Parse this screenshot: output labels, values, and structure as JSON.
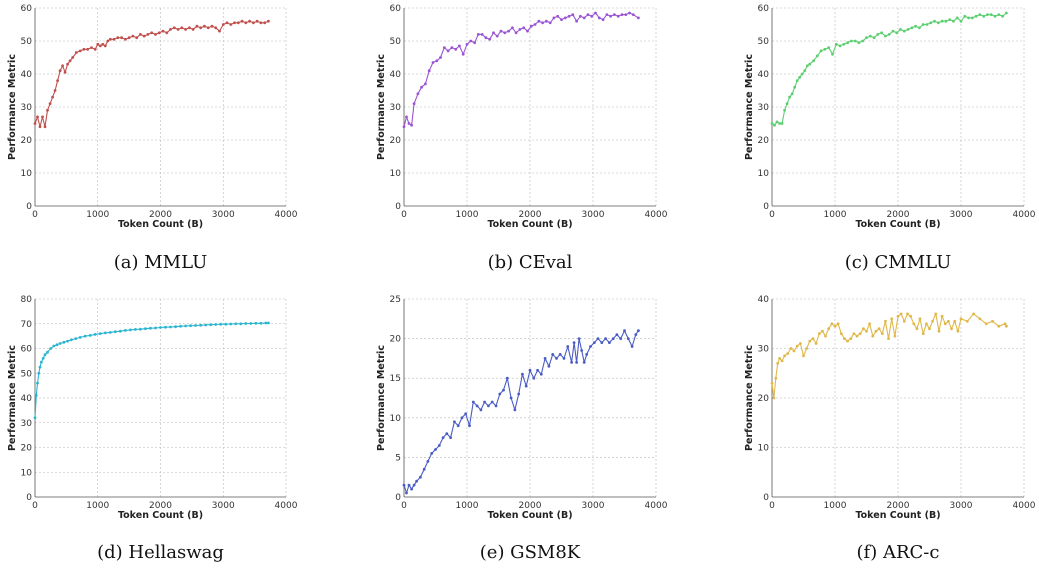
{
  "chart_data": [
    {
      "type": "line",
      "caption": "(a) MMLU",
      "xlabel": "Token Count (B)",
      "ylabel": "Performance Metric",
      "xlim": [
        0,
        4000
      ],
      "ylim": [
        0,
        60
      ],
      "xticks": [
        0,
        1000,
        2000,
        3000,
        4000
      ],
      "yticks": [
        0,
        10,
        20,
        30,
        40,
        50,
        60
      ],
      "grid": true,
      "color": "#c0504d",
      "series": [
        {
          "x": [
            0,
            40,
            80,
            120,
            160,
            200,
            240,
            280,
            320,
            360,
            400,
            440,
            480,
            520,
            560,
            600,
            660,
            720,
            780,
            840,
            900,
            960,
            1000,
            1040,
            1080,
            1120,
            1160,
            1200,
            1260,
            1320,
            1380,
            1440,
            1500,
            1560,
            1620,
            1680,
            1740,
            1800,
            1860,
            1920,
            1980,
            2040,
            2100,
            2160,
            2220,
            2280,
            2340,
            2400,
            2460,
            2520,
            2580,
            2640,
            2700,
            2760,
            2820,
            2880,
            2940,
            3000,
            3060,
            3120,
            3180,
            3240,
            3300,
            3360,
            3420,
            3480,
            3540,
            3600,
            3660,
            3720
          ],
          "y": [
            25,
            27,
            24,
            27,
            24,
            29,
            31,
            33,
            35,
            38,
            41,
            42.5,
            40.5,
            43,
            44,
            45,
            46.5,
            47,
            47.5,
            47.5,
            48,
            47.5,
            49,
            48.5,
            49,
            48.5,
            50,
            50.5,
            50.5,
            51,
            51,
            50.5,
            51,
            51.5,
            51,
            52,
            51.5,
            52,
            52.5,
            52,
            52.5,
            53,
            52.5,
            53.5,
            54,
            53.5,
            54,
            53.5,
            54,
            53.5,
            54.5,
            54,
            54.5,
            54,
            54.5,
            54,
            53,
            55,
            55.5,
            55,
            55.5,
            55.5,
            56,
            55.5,
            56,
            55.5,
            56,
            55.5,
            55.5,
            56
          ]
        }
      ]
    },
    {
      "type": "line",
      "caption": "(b) CEval",
      "xlabel": "Token Count (B)",
      "ylabel": "Performance Metric",
      "xlim": [
        0,
        4000
      ],
      "ylim": [
        0,
        60
      ],
      "xticks": [
        0,
        1000,
        2000,
        3000,
        4000
      ],
      "yticks": [
        0,
        10,
        20,
        30,
        40,
        50,
        60
      ],
      "grid": true,
      "color": "#9b55d4",
      "series": [
        {
          "x": [
            0,
            40,
            80,
            120,
            160,
            220,
            280,
            340,
            400,
            460,
            520,
            580,
            640,
            700,
            760,
            820,
            880,
            940,
            1000,
            1060,
            1120,
            1180,
            1240,
            1300,
            1360,
            1420,
            1480,
            1540,
            1600,
            1660,
            1720,
            1780,
            1840,
            1900,
            1960,
            2020,
            2080,
            2140,
            2200,
            2260,
            2320,
            2380,
            2440,
            2500,
            2560,
            2620,
            2680,
            2740,
            2800,
            2860,
            2920,
            2980,
            3040,
            3100,
            3160,
            3220,
            3280,
            3340,
            3400,
            3460,
            3520,
            3580,
            3640,
            3720
          ],
          "y": [
            24,
            27,
            25,
            24.5,
            31,
            34,
            36,
            37,
            41,
            43.5,
            44,
            45,
            48,
            47,
            48,
            47.5,
            48.5,
            46,
            49,
            50,
            49.5,
            52,
            52,
            51,
            50.5,
            52.5,
            51.5,
            53,
            52.5,
            53,
            54,
            52.5,
            53.5,
            54,
            53,
            54.5,
            55,
            56,
            55.5,
            56,
            55.5,
            57,
            57.5,
            56.5,
            57,
            57.5,
            58,
            56,
            57.5,
            57,
            58,
            57.5,
            58.5,
            57,
            56.5,
            58,
            57.5,
            58,
            57.5,
            58,
            58,
            58.5,
            58,
            57
          ]
        }
      ]
    },
    {
      "type": "line",
      "caption": "(c) CMMLU",
      "xlabel": "Token Count (B)",
      "ylabel": "Performance Metric",
      "xlim": [
        0,
        4000
      ],
      "ylim": [
        0,
        60
      ],
      "xticks": [
        0,
        1000,
        2000,
        3000,
        4000
      ],
      "yticks": [
        0,
        10,
        20,
        30,
        40,
        50,
        60
      ],
      "grid": true,
      "color": "#5ccf70",
      "series": [
        {
          "x": [
            0,
            40,
            80,
            120,
            160,
            200,
            240,
            280,
            320,
            360,
            400,
            440,
            480,
            520,
            560,
            600,
            660,
            720,
            780,
            840,
            900,
            960,
            1020,
            1080,
            1140,
            1200,
            1260,
            1320,
            1380,
            1440,
            1500,
            1560,
            1620,
            1680,
            1740,
            1800,
            1860,
            1920,
            1980,
            2040,
            2100,
            2160,
            2220,
            2280,
            2340,
            2400,
            2460,
            2520,
            2580,
            2640,
            2700,
            2760,
            2820,
            2880,
            2940,
            3000,
            3060,
            3120,
            3180,
            3240,
            3300,
            3360,
            3420,
            3480,
            3540,
            3600,
            3660,
            3720
          ],
          "y": [
            25,
            24.5,
            25.5,
            25,
            25,
            29,
            31,
            33,
            34,
            36,
            38,
            39,
            40,
            41,
            42.5,
            43,
            44,
            45.5,
            47,
            47.5,
            48,
            46,
            49,
            48.5,
            49,
            49.5,
            50,
            50,
            49.5,
            50,
            51,
            51.5,
            51,
            52,
            52.5,
            51.5,
            52,
            53,
            52.5,
            53.5,
            53,
            53.5,
            54,
            54.5,
            54,
            55,
            55,
            55.5,
            56,
            55.5,
            56,
            56,
            56.5,
            56,
            57,
            56,
            57.5,
            57,
            57,
            57.5,
            58,
            57.5,
            58,
            58,
            57.5,
            58,
            57.5,
            58.5
          ]
        }
      ]
    },
    {
      "type": "line",
      "caption": "(d) Hellaswag",
      "xlabel": "Token Count (B)",
      "ylabel": "Performance Metric",
      "xlim": [
        0,
        4000
      ],
      "ylim": [
        0,
        80
      ],
      "xticks": [
        0,
        1000,
        2000,
        3000,
        4000
      ],
      "yticks": [
        0,
        10,
        20,
        30,
        40,
        50,
        60,
        70,
        80
      ],
      "grid": true,
      "color": "#2bb5d0",
      "series": [
        {
          "x": [
            0,
            20,
            40,
            60,
            80,
            100,
            130,
            160,
            200,
            250,
            300,
            350,
            400,
            460,
            520,
            580,
            650,
            720,
            800,
            880,
            960,
            1040,
            1120,
            1200,
            1280,
            1360,
            1440,
            1520,
            1600,
            1680,
            1760,
            1840,
            1920,
            2000,
            2080,
            2160,
            2240,
            2320,
            2400,
            2480,
            2560,
            2640,
            2720,
            2800,
            2880,
            2960,
            3040,
            3120,
            3200,
            3280,
            3360,
            3440,
            3520,
            3600,
            3680,
            3720
          ],
          "y": [
            32,
            41,
            46,
            50,
            52.5,
            54.5,
            56,
            57.5,
            58.5,
            60,
            61,
            61.5,
            62,
            62.5,
            63,
            63.5,
            64,
            64.5,
            65,
            65.3,
            65.7,
            66,
            66.3,
            66.5,
            66.8,
            67,
            67.3,
            67.5,
            67.7,
            67.8,
            68,
            68.2,
            68.3,
            68.5,
            68.6,
            68.7,
            68.8,
            69,
            69.1,
            69.2,
            69.3,
            69.4,
            69.5,
            69.6,
            69.7,
            69.8,
            69.8,
            69.9,
            70,
            70,
            70.1,
            70.1,
            70.2,
            70.2,
            70.3,
            70.3
          ]
        }
      ]
    },
    {
      "type": "line",
      "caption": "(e) GSM8K",
      "xlabel": "Token Count (B)",
      "ylabel": "Performance Metric",
      "xlim": [
        0,
        4000
      ],
      "ylim": [
        0,
        25
      ],
      "xticks": [
        0,
        1000,
        2000,
        3000,
        4000
      ],
      "yticks": [
        0,
        5,
        10,
        15,
        20,
        25
      ],
      "grid": true,
      "color": "#4a5cc5",
      "series": [
        {
          "x": [
            0,
            40,
            80,
            120,
            160,
            200,
            260,
            320,
            380,
            440,
            500,
            560,
            620,
            680,
            740,
            800,
            860,
            920,
            980,
            1040,
            1100,
            1160,
            1220,
            1280,
            1340,
            1400,
            1460,
            1520,
            1580,
            1640,
            1700,
            1760,
            1820,
            1880,
            1940,
            2000,
            2060,
            2120,
            2180,
            2240,
            2300,
            2360,
            2420,
            2480,
            2540,
            2600,
            2660,
            2700,
            2740,
            2780,
            2820,
            2860,
            2900,
            2960,
            3020,
            3080,
            3140,
            3200,
            3260,
            3320,
            3380,
            3440,
            3500,
            3560,
            3620,
            3680,
            3720
          ],
          "y": [
            1.5,
            0.5,
            1.5,
            1,
            1.5,
            2,
            2.5,
            3.5,
            4.5,
            5.5,
            6,
            6.5,
            7.5,
            8,
            7.5,
            9.5,
            9,
            10,
            10.5,
            9,
            12,
            11.5,
            11,
            12,
            11.5,
            12,
            11.5,
            13,
            13.5,
            15,
            12.5,
            11,
            13,
            15.5,
            14,
            16,
            15,
            16,
            15.5,
            17.5,
            16.5,
            18,
            17.5,
            18,
            17.5,
            19,
            17,
            19.5,
            17,
            20,
            18.5,
            17,
            18,
            19,
            19.5,
            20,
            19.5,
            20,
            19.5,
            20,
            20.5,
            20,
            21,
            20,
            19,
            20.5,
            21
          ]
        }
      ]
    },
    {
      "type": "line",
      "caption": "(f) ARC-c",
      "xlabel": "Token Count (B)",
      "ylabel": "Performance Metric",
      "xlim": [
        0,
        4000
      ],
      "ylim": [
        0,
        40
      ],
      "xticks": [
        0,
        1000,
        2000,
        3000,
        4000
      ],
      "yticks": [
        0,
        10,
        20,
        30,
        40
      ],
      "grid": true,
      "color": "#e0b84a",
      "series": [
        {
          "x": [
            0,
            30,
            60,
            90,
            120,
            160,
            200,
            250,
            300,
            350,
            400,
            450,
            500,
            550,
            600,
            650,
            700,
            750,
            800,
            850,
            900,
            950,
            1000,
            1050,
            1100,
            1150,
            1200,
            1250,
            1300,
            1350,
            1400,
            1450,
            1500,
            1550,
            1600,
            1650,
            1700,
            1750,
            1800,
            1850,
            1900,
            1950,
            2000,
            2050,
            2100,
            2150,
            2200,
            2250,
            2300,
            2350,
            2400,
            2450,
            2500,
            2550,
            2600,
            2650,
            2700,
            2750,
            2800,
            2850,
            2900,
            2950,
            3000,
            3100,
            3200,
            3300,
            3400,
            3500,
            3600,
            3700,
            3720
          ],
          "y": [
            23,
            20,
            24,
            27,
            28,
            27.5,
            28.5,
            29,
            30,
            29.5,
            30.5,
            31,
            28.5,
            30,
            31.5,
            32,
            31,
            33,
            33.5,
            32.5,
            34,
            35,
            34.5,
            35,
            33,
            32,
            31.5,
            32,
            33,
            32.5,
            33,
            34,
            33.5,
            35,
            32.5,
            33.5,
            34,
            33,
            35.5,
            32,
            36,
            32.5,
            36.5,
            37,
            35.5,
            37,
            36.5,
            35,
            34,
            36,
            33,
            35,
            34,
            35.5,
            37,
            33.5,
            36.5,
            35,
            35.5,
            34,
            35.5,
            33.5,
            36,
            35.5,
            37,
            36,
            35,
            35.5,
            34.5,
            35,
            34.5
          ]
        }
      ]
    }
  ]
}
